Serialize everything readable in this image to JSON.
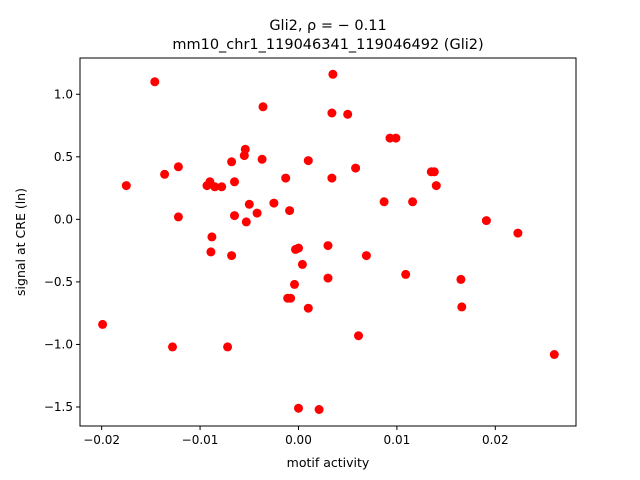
{
  "chart_data": {
    "type": "scatter",
    "title_line1": "Gli2, ρ = − 0.11",
    "title_line2": "mm10_chr1_119046341_119046492 (Gli2)",
    "xlabel": "motif activity",
    "ylabel": "signal at CRE (ln)",
    "xlim": [
      -0.0222,
      0.0282
    ],
    "ylim": [
      -1.652,
      1.29
    ],
    "x_ticks": [
      {
        "value": -0.02,
        "label": "−0.02"
      },
      {
        "value": -0.01,
        "label": "−0.01"
      },
      {
        "value": 0.0,
        "label": "0.00"
      },
      {
        "value": 0.01,
        "label": "0.01"
      },
      {
        "value": 0.02,
        "label": "0.02"
      }
    ],
    "y_ticks": [
      {
        "value": 1.0,
        "label": "1.0"
      },
      {
        "value": 0.5,
        "label": "0.5"
      },
      {
        "value": 0.0,
        "label": "0.0"
      },
      {
        "value": -0.5,
        "label": "−0.5"
      },
      {
        "value": -1.0,
        "label": "−1.0"
      },
      {
        "value": -1.5,
        "label": "−1.5"
      }
    ],
    "marker_color": "#ff0000",
    "grid": false,
    "points": [
      {
        "x": -0.0146,
        "y": 1.1
      },
      {
        "x": -0.0175,
        "y": 0.27
      },
      {
        "x": -0.0199,
        "y": -0.84
      },
      {
        "x": -0.0136,
        "y": 0.36
      },
      {
        "x": -0.0122,
        "y": 0.42
      },
      {
        "x": -0.0122,
        "y": 0.02
      },
      {
        "x": -0.0128,
        "y": -1.02
      },
      {
        "x": -0.0093,
        "y": 0.27
      },
      {
        "x": -0.009,
        "y": 0.3
      },
      {
        "x": -0.0085,
        "y": 0.26
      },
      {
        "x": -0.0078,
        "y": 0.26
      },
      {
        "x": -0.0088,
        "y": -0.14
      },
      {
        "x": -0.0089,
        "y": -0.26
      },
      {
        "x": -0.0068,
        "y": 0.46
      },
      {
        "x": -0.0065,
        "y": 0.3
      },
      {
        "x": -0.0065,
        "y": 0.03
      },
      {
        "x": -0.0068,
        "y": -0.29
      },
      {
        "x": -0.0072,
        "y": -1.02
      },
      {
        "x": -0.0054,
        "y": 0.56
      },
      {
        "x": -0.0055,
        "y": 0.51
      },
      {
        "x": -0.005,
        "y": 0.12
      },
      {
        "x": -0.0053,
        "y": -0.02
      },
      {
        "x": -0.0036,
        "y": 0.9
      },
      {
        "x": -0.0037,
        "y": 0.48
      },
      {
        "x": -0.0042,
        "y": 0.05
      },
      {
        "x": -0.0025,
        "y": 0.13
      },
      {
        "x": -0.0013,
        "y": 0.33
      },
      {
        "x": -0.0009,
        "y": 0.07
      },
      {
        "x": -0.0003,
        "y": -0.24
      },
      {
        "x": 0.0,
        "y": -0.23
      },
      {
        "x": -0.0004,
        "y": -0.52
      },
      {
        "x": -0.0008,
        "y": -0.63
      },
      {
        "x": -0.0011,
        "y": -0.63
      },
      {
        "x": 0.0004,
        "y": -0.36
      },
      {
        "x": 0.001,
        "y": 0.47
      },
      {
        "x": 0.001,
        "y": -0.71
      },
      {
        "x": 0.0,
        "y": -1.51
      },
      {
        "x": 0.0021,
        "y": -1.52
      },
      {
        "x": 0.0035,
        "y": 1.16
      },
      {
        "x": 0.0034,
        "y": 0.85
      },
      {
        "x": 0.005,
        "y": 0.84
      },
      {
        "x": 0.0034,
        "y": 0.33
      },
      {
        "x": 0.0058,
        "y": 0.41
      },
      {
        "x": 0.003,
        "y": -0.21
      },
      {
        "x": 0.003,
        "y": -0.47
      },
      {
        "x": 0.0061,
        "y": -0.93
      },
      {
        "x": 0.0069,
        "y": -0.29
      },
      {
        "x": 0.0093,
        "y": 0.65
      },
      {
        "x": 0.0099,
        "y": 0.65
      },
      {
        "x": 0.0087,
        "y": 0.14
      },
      {
        "x": 0.0116,
        "y": 0.14
      },
      {
        "x": 0.0109,
        "y": -0.44
      },
      {
        "x": 0.0135,
        "y": 0.38
      },
      {
        "x": 0.0138,
        "y": 0.38
      },
      {
        "x": 0.014,
        "y": 0.27
      },
      {
        "x": 0.0165,
        "y": -0.48
      },
      {
        "x": 0.0166,
        "y": -0.7
      },
      {
        "x": 0.0191,
        "y": -0.01
      },
      {
        "x": 0.0223,
        "y": -0.11
      },
      {
        "x": 0.026,
        "y": -1.08
      }
    ]
  }
}
